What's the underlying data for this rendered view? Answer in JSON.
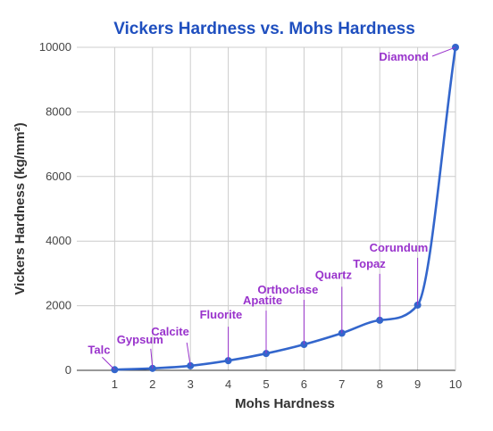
{
  "chart_data": {
    "type": "line",
    "title": "Vickers Hardness vs. Mohs Hardness",
    "xlabel": "Mohs Hardness",
    "ylabel": "Vickers Hardness (kg/mm²)",
    "xlim": [
      0,
      10
    ],
    "ylim": [
      0,
      10000
    ],
    "x_ticks": [
      "1",
      "2",
      "3",
      "4",
      "5",
      "6",
      "7",
      "8",
      "9",
      "10"
    ],
    "y_ticks": [
      "0",
      "2000",
      "4000",
      "6000",
      "8000",
      "10000"
    ],
    "grid": true,
    "legend": "none",
    "colors": {
      "title": "#1f4fbf",
      "line": "#3366cc",
      "annotation": "#9933cc",
      "grid": "#cccccc",
      "axis": "#333333"
    },
    "series": [
      {
        "name": "",
        "x": [
          1,
          2,
          3,
          4,
          5,
          6,
          7,
          8,
          9,
          10
        ],
        "y": [
          20,
          60,
          140,
          300,
          520,
          800,
          1150,
          1550,
          2020,
          10000
        ],
        "labels": [
          "Talc",
          "Gypsum",
          "Calcite",
          "Fluorite",
          "Apatite",
          "Orthoclase",
          "Quartz",
          "Topaz",
          "Corundum",
          "Diamond"
        ]
      }
    ]
  }
}
